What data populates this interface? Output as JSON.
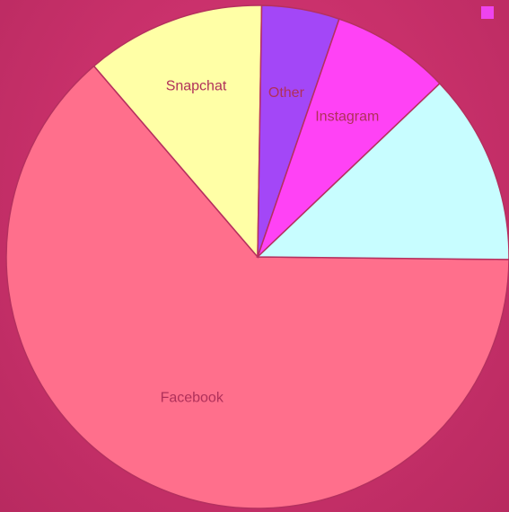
{
  "chart_data": {
    "type": "pie",
    "title": "",
    "categories": [
      "Facebook",
      "Snapchat",
      "Other",
      "Instagram",
      ""
    ],
    "values": [
      69.9,
      12.7,
      5.5,
      8.4,
      13.5
    ],
    "start_angle_deg": 0.6,
    "direction": "clockwise",
    "colors": [
      "#ff6f8c",
      "#ffffa6",
      "#a347f7",
      "#ff42f5",
      "#c8fdff"
    ],
    "legend": {
      "placement": "top-right",
      "entries": [
        {
          "label": "",
          "color": "#ee44ee"
        }
      ]
    }
  },
  "colors": {
    "background": "#c8306a",
    "slice_border": "#b5305f",
    "label_text": "#b0305a"
  }
}
